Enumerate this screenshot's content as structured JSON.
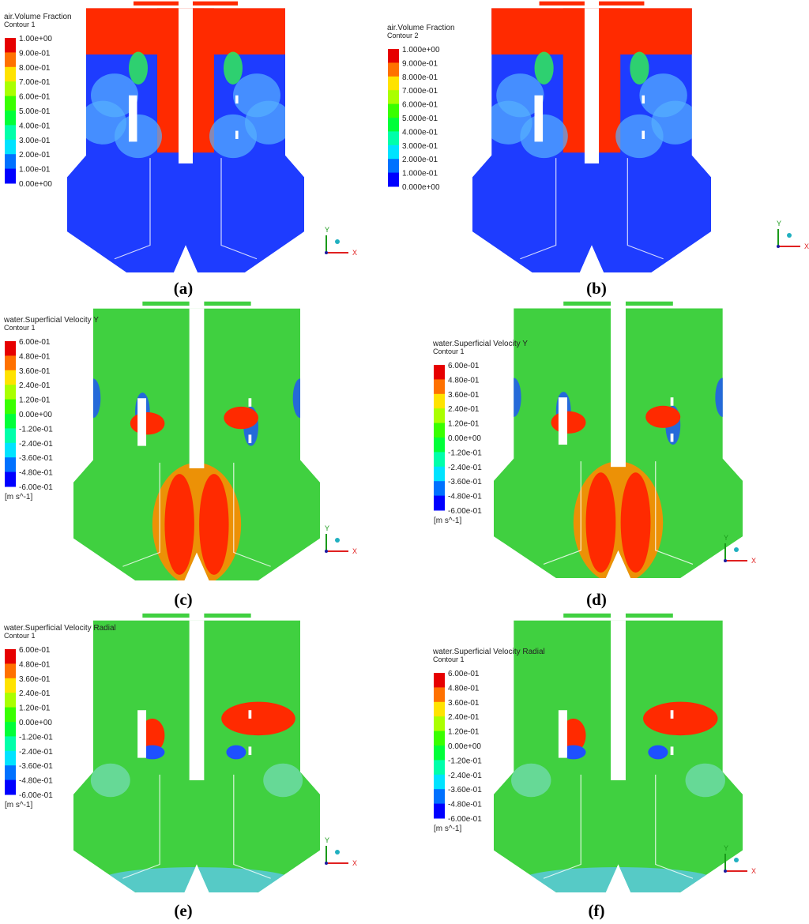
{
  "axis_labels": {
    "x": "X",
    "y": "Y"
  },
  "panels": [
    {
      "caption": "(a)",
      "legend": {
        "title": "air.Volume Fraction",
        "subtitle": "Contour 1",
        "ticks": [
          "1.00e+00",
          "9.00e-01",
          "8.00e-01",
          "7.00e-01",
          "6.00e-01",
          "5.00e-01",
          "4.00e-01",
          "3.00e-01",
          "2.00e-01",
          "1.00e-01",
          "0.00e+00"
        ]
      }
    },
    {
      "caption": "(b)",
      "legend": {
        "title": "air.Volume Fraction",
        "subtitle": "Contour 2",
        "ticks": [
          "1.000e+00",
          "9.000e-01",
          "8.000e-01",
          "7.000e-01",
          "6.000e-01",
          "5.000e-01",
          "4.000e-01",
          "3.000e-01",
          "2.000e-01",
          "1.000e-01",
          "0.000e+00"
        ]
      }
    },
    {
      "caption": "(c)",
      "legend": {
        "title": "water.Superficial Velocity Y",
        "subtitle": "Contour 1",
        "ticks": [
          "6.00e-01",
          "4.80e-01",
          "3.60e-01",
          "2.40e-01",
          "1.20e-01",
          "0.00e+00",
          "-1.20e-01",
          "-2.40e-01",
          "-3.60e-01",
          "-4.80e-01",
          "-6.00e-01"
        ],
        "unit": "[m s^-1]"
      }
    },
    {
      "caption": "(d)",
      "legend": {
        "title": "water.Superficial Velocity Y",
        "subtitle": "Contour 1",
        "ticks": [
          "6.00e-01",
          "4.80e-01",
          "3.60e-01",
          "2.40e-01",
          "1.20e-01",
          "0.00e+00",
          "-1.20e-01",
          "-2.40e-01",
          "-3.60e-01",
          "-4.80e-01",
          "-6.00e-01"
        ],
        "unit": "[m s^-1]"
      }
    },
    {
      "caption": "(e)",
      "legend": {
        "title": "water.Superficial Velocity Radial",
        "subtitle": "Contour 1",
        "ticks": [
          "6.00e-01",
          "4.80e-01",
          "3.60e-01",
          "2.40e-01",
          "1.20e-01",
          "0.00e+00",
          "-1.20e-01",
          "-2.40e-01",
          "-3.60e-01",
          "-4.80e-01",
          "-6.00e-01"
        ],
        "unit": "[m s^-1]"
      }
    },
    {
      "caption": "(f)",
      "legend": {
        "title": "water.Superficial Velocity Radial",
        "subtitle": "Contour 1",
        "ticks": [
          "6.00e-01",
          "4.80e-01",
          "3.60e-01",
          "2.40e-01",
          "1.20e-01",
          "0.00e+00",
          "-1.20e-01",
          "-2.40e-01",
          "-3.60e-01",
          "-4.80e-01",
          "-6.00e-01"
        ],
        "unit": "[m s^-1]"
      }
    }
  ]
}
